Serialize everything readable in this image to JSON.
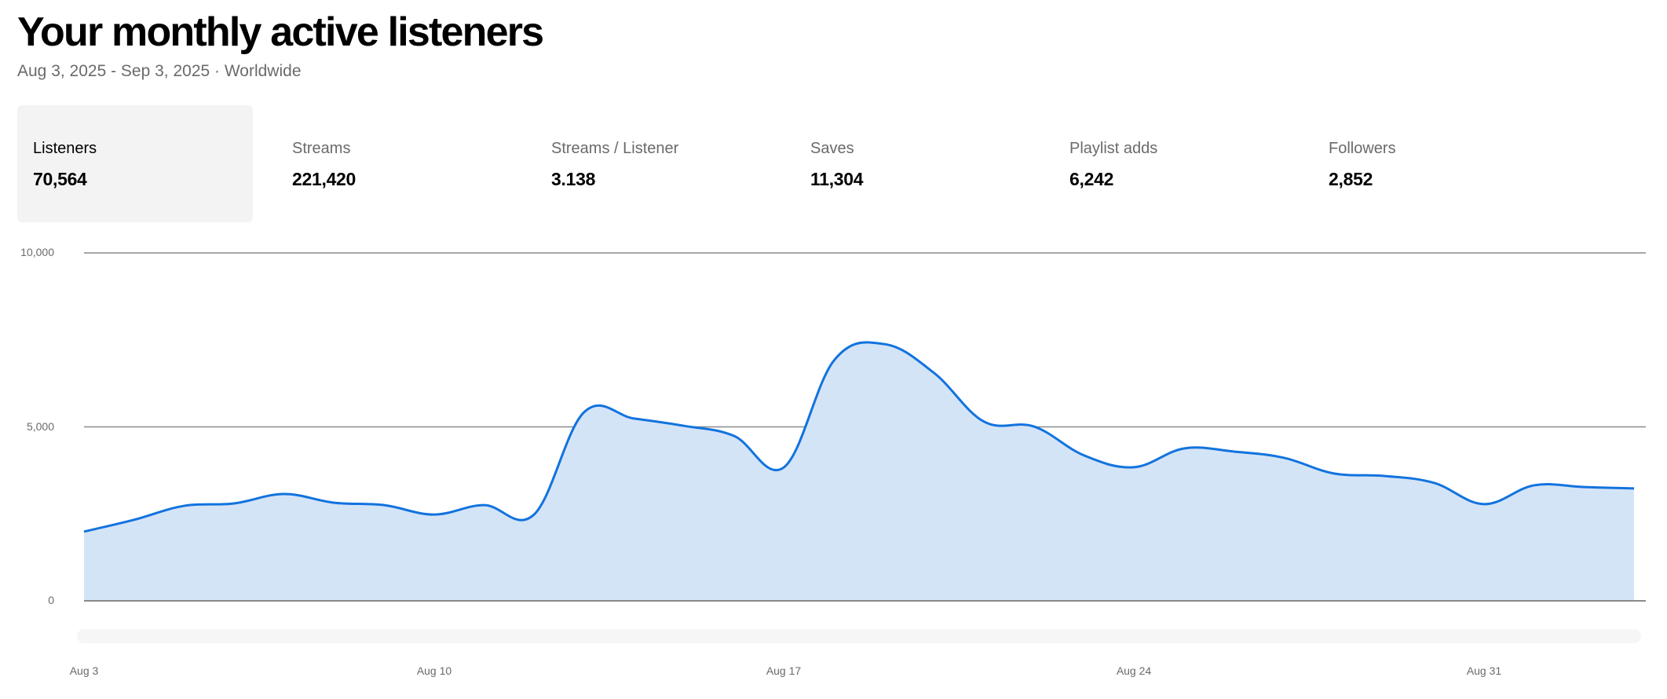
{
  "header": {
    "title": "Your monthly active listeners",
    "subtitle": "Aug 3, 2025 - Sep 3, 2025 · Worldwide"
  },
  "metrics": [
    {
      "label": "Listeners",
      "value": "70,564",
      "active": true
    },
    {
      "label": "Streams",
      "value": "221,420",
      "active": false
    },
    {
      "label": "Streams / Listener",
      "value": "3.138",
      "active": false
    },
    {
      "label": "Saves",
      "value": "11,304",
      "active": false
    },
    {
      "label": "Playlist adds",
      "value": "6,242",
      "active": false
    },
    {
      "label": "Followers",
      "value": "2,852",
      "active": false
    }
  ],
  "colors": {
    "line": "#1273de",
    "fill": "#d4e4f7",
    "grid": "#8a8a8a",
    "active_tab_bg": "#f3f3f3"
  },
  "chart_data": {
    "type": "area",
    "title": "Your monthly active listeners",
    "series": [
      {
        "name": "Listeners",
        "values": [
          1990,
          2330,
          2730,
          2800,
          3070,
          2820,
          2750,
          2480,
          2750,
          2480,
          5420,
          5240,
          5030,
          4740,
          3840,
          6910,
          7380,
          6550,
          5150,
          5010,
          4180,
          3840,
          4380,
          4290,
          4110,
          3660,
          3590,
          3390,
          2780,
          3320,
          3270,
          3230
        ]
      }
    ],
    "x": [
      "Aug 3",
      "Aug 4",
      "Aug 5",
      "Aug 6",
      "Aug 7",
      "Aug 8",
      "Aug 9",
      "Aug 10",
      "Aug 11",
      "Aug 12",
      "Aug 13",
      "Aug 14",
      "Aug 15",
      "Aug 16",
      "Aug 17",
      "Aug 18",
      "Aug 19",
      "Aug 20",
      "Aug 21",
      "Aug 22",
      "Aug 23",
      "Aug 24",
      "Aug 25",
      "Aug 26",
      "Aug 27",
      "Aug 28",
      "Aug 29",
      "Aug 30",
      "Aug 31",
      "Sep 1",
      "Sep 2",
      "Sep 3"
    ],
    "x_tick_labels": [
      "Aug 3",
      "Aug 10",
      "Aug 17",
      "Aug 24",
      "Aug 31"
    ],
    "y_tick_labels": [
      "10,000",
      "5,000",
      "0"
    ],
    "y_ticks": [
      10000,
      5000,
      0
    ],
    "ylim": [
      0,
      10000
    ],
    "xlabel": "",
    "ylabel": "",
    "grid": true,
    "legend": "none"
  }
}
